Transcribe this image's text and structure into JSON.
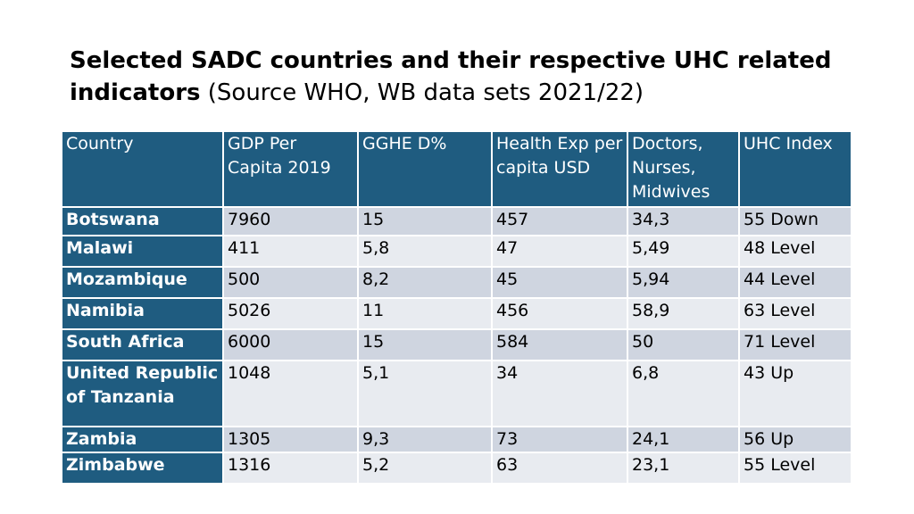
{
  "title": {
    "bold": "Selected SADC countries and their respective UHC related indicators",
    "source": "(Source WHO, WB data sets 2021/22)"
  },
  "table": {
    "headers": [
      "Country",
      "GDP Per Capita 2019",
      "GGHE  D%",
      "Health Exp per capita USD",
      "Doctors, Nurses, Midwives",
      "UHC Index"
    ],
    "rows": [
      [
        "Botswana",
        "7960",
        "15",
        "457",
        "34,3",
        "55 Down"
      ],
      [
        "Malawi",
        "411",
        "5,8",
        "47",
        "5,49",
        "48 Level"
      ],
      [
        "Mozambique",
        "500",
        "8,2",
        "45",
        "5,94",
        "44 Level"
      ],
      [
        "Namibia",
        "5026",
        "11",
        "456",
        "58,9",
        "63 Level"
      ],
      [
        "South Africa",
        "6000",
        "15",
        "584",
        "50",
        "71 Level"
      ],
      [
        "United Republic of Tanzania",
        "1048",
        "5,1",
        "34",
        "6,8",
        "43 Up"
      ],
      [
        "Zambia",
        "1305",
        "9,3",
        "73",
        "24,1",
        "56 Up"
      ],
      [
        "Zimbabwe",
        "1316",
        "5,2",
        "63",
        "23,1",
        "55 Level"
      ]
    ]
  },
  "colors": {
    "header_bg": "#1f5c80",
    "row_odd": "#cfd5e0",
    "row_even": "#e8ebf0"
  }
}
